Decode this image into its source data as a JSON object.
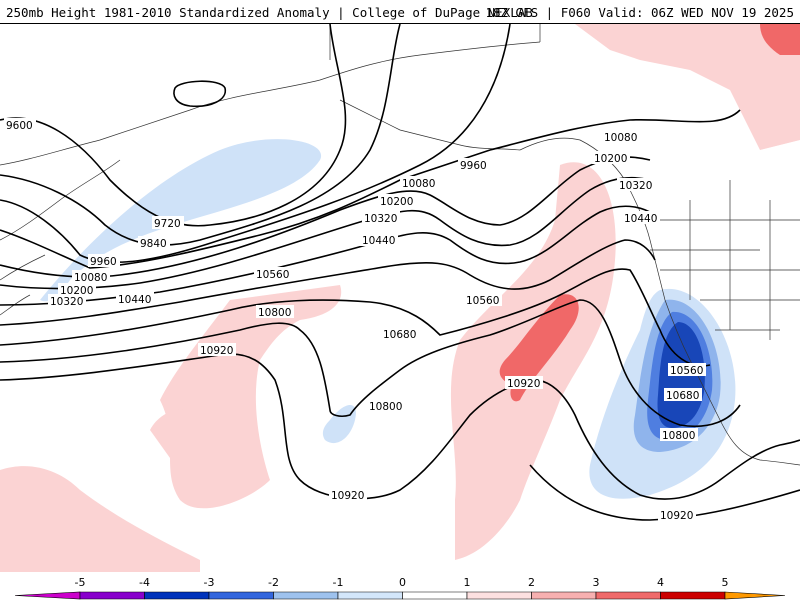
{
  "header": {
    "left_title": "250mb Height 1981-2010 Standardized Anomaly | College of DuPage NEXLAB",
    "right_title": "18Z GFS | F060 Valid: 06Z WED NOV 19 2025"
  },
  "contour_labels": {
    "c9600": "9600",
    "c9720": "9720",
    "c9840": "9840",
    "c9960_w": "9960",
    "c9960_e": "9960",
    "c10080_w": "10080",
    "c10080_m": "10080",
    "c10080_e": "10080",
    "c10200_w": "10200",
    "c10200_m": "10200",
    "c10200_e": "10200",
    "c10320_w": "10320",
    "c10320_m": "10320",
    "c10320_e": "10320",
    "c10440_w": "10440",
    "c10440_m": "10440",
    "c10440_e": "10440",
    "c10560_w": "10560",
    "c10560_m": "10560",
    "c10560_e": "10560",
    "c10680_m": "10680",
    "c10680_e": "10680",
    "c10800_w": "10800",
    "c10800_m": "10800",
    "c10800_e": "10800",
    "c10920_w": "10920",
    "c10920_m": "10920",
    "c10920_s": "10920",
    "c10920_se": "10920"
  },
  "colorbar": {
    "ticks": [
      "-5",
      "-4",
      "-3",
      "-2",
      "-1",
      "0",
      "1",
      "2",
      "3",
      "4",
      "5"
    ],
    "colors": [
      "#cc00cc",
      "#8800cc",
      "#0033bb",
      "#3366dd",
      "#9ec2ee",
      "#d3e6fa",
      "#ffffff",
      "#fde0e0",
      "#f7b0b0",
      "#ef6a6a",
      "#cc0000",
      "#ff9900",
      "#ffcc00"
    ]
  }
}
